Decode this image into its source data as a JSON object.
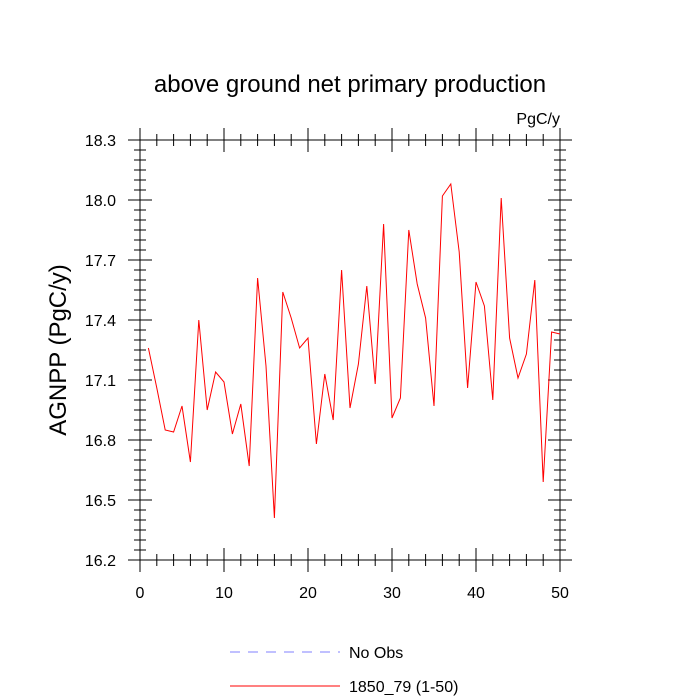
{
  "chart_data": {
    "type": "line",
    "title": "above ground net primary production",
    "units": "PgC/y",
    "xlabel": "",
    "ylabel": "AGNPP  (PgC/y)",
    "xlim": [
      0,
      50
    ],
    "ylim": [
      16.2,
      18.3
    ],
    "xticks": [
      0,
      10,
      20,
      30,
      40,
      50
    ],
    "xtick_labels": [
      "0",
      "10",
      "20",
      "30",
      "40",
      "50"
    ],
    "yticks": [
      16.2,
      16.5,
      16.8,
      17.1,
      17.4,
      17.7,
      18.0,
      18.3
    ],
    "ytick_labels": [
      "16.2",
      "16.5",
      "16.8",
      "17.1",
      "17.4",
      "17.7",
      "18.0",
      "18.3"
    ],
    "series": [
      {
        "name": "1850_79 (1-50)",
        "color": "#ff0000",
        "x": [
          1,
          2,
          3,
          4,
          5,
          6,
          7,
          8,
          9,
          10,
          11,
          12,
          13,
          14,
          15,
          16,
          17,
          18,
          19,
          20,
          21,
          22,
          23,
          24,
          25,
          26,
          27,
          28,
          29,
          30,
          31,
          32,
          33,
          34,
          35,
          36,
          37,
          38,
          39,
          40,
          41,
          42,
          43,
          44,
          45,
          46,
          47,
          48,
          49,
          50
        ],
        "values": [
          17.26,
          17.06,
          16.85,
          16.84,
          16.97,
          16.69,
          17.4,
          16.95,
          17.14,
          17.09,
          16.83,
          16.98,
          16.67,
          17.61,
          17.17,
          16.41,
          17.54,
          17.41,
          17.26,
          17.31,
          16.78,
          17.13,
          16.9,
          17.65,
          16.96,
          17.18,
          17.57,
          17.08,
          17.88,
          16.91,
          17.01,
          17.85,
          17.58,
          17.41,
          16.97,
          18.02,
          18.08,
          17.74,
          17.06,
          17.59,
          17.47,
          17.0,
          18.01,
          17.31,
          17.11,
          17.23,
          17.6,
          16.59,
          17.34,
          17.33
        ]
      }
    ],
    "legend": [
      {
        "label": "No Obs",
        "color": "#8080ff",
        "style": "dashed"
      },
      {
        "label": "1850_79 (1-50)",
        "color": "#ff0000",
        "style": "solid"
      }
    ],
    "grid": false,
    "legend_position": "bottom"
  }
}
